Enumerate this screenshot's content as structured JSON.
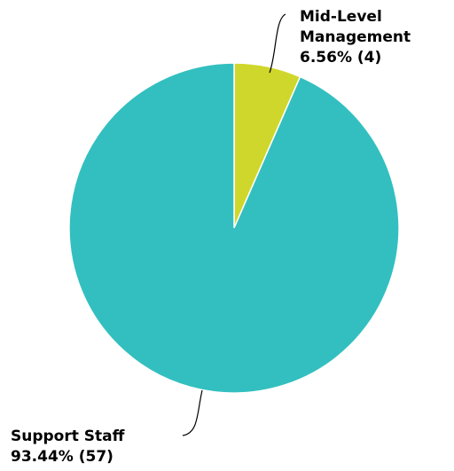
{
  "chart_data": {
    "type": "pie",
    "start_angle_deg": 0,
    "direction": "clockwise",
    "slices": [
      {
        "label_lines": [
          "Mid-Level",
          "Management",
          "6.56% (4)"
        ],
        "value": 4,
        "percent": 6.56,
        "color": "#d0d72c"
      },
      {
        "label_lines": [
          "Support Staff",
          "93.44% (57)"
        ],
        "value": 57,
        "percent": 93.44,
        "color": "#33bfc0"
      }
    ]
  }
}
